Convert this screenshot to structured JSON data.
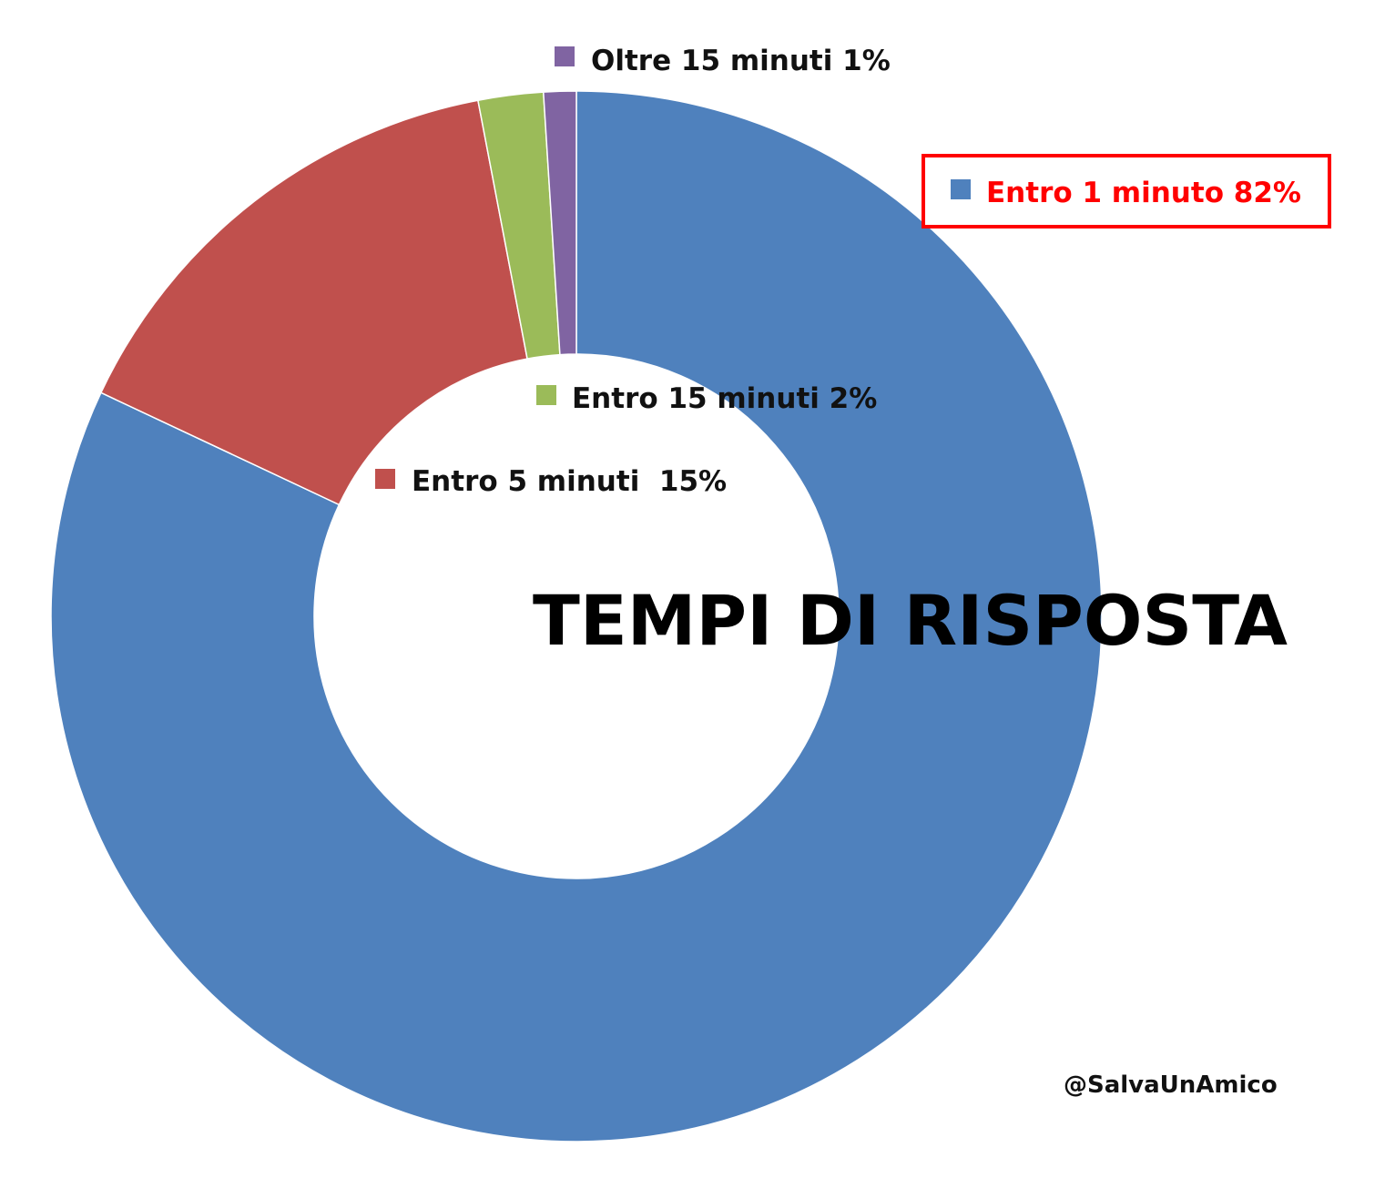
{
  "chart_data": {
    "type": "pie",
    "variant": "donut",
    "title": "TEMPI DI RISPOSTA",
    "slices": [
      {
        "label": "Entro 1 minuto 82%",
        "value": 82,
        "color": "#4F81BD",
        "highlighted": true,
        "highlight_color": "#FF0000"
      },
      {
        "label": "Entro 5 minuti  15%",
        "value": 15,
        "color": "#C0504D"
      },
      {
        "label": "Entro 15 minuti 2%",
        "value": 2,
        "color": "#9BBB59"
      },
      {
        "label": "Oltre 15 minuti 1%",
        "value": 1,
        "color": "#8064A2"
      }
    ],
    "direction": "clockwise",
    "start": "top",
    "legend": "inline"
  },
  "credit": "@SalvaUnAmico"
}
